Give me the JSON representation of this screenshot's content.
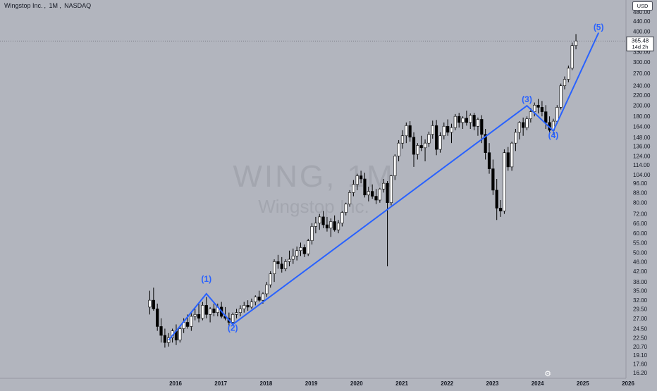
{
  "header": {
    "symbol_name": "Wingstop Inc.",
    "interval": "1M",
    "exchange": "NASDAQ"
  },
  "currency": "USD",
  "watermark": {
    "ticker_interval": "WING, 1M",
    "company": "Wingstop Inc."
  },
  "colors": {
    "background": "#b2b5be",
    "up_candle": "#ffffff",
    "down_candle": "#000000",
    "wave_line": "#2962ff",
    "wave_label": "#2962ff",
    "price_line": "#5d606b"
  },
  "icons": {
    "settings": "settings-icon"
  },
  "chart_data": {
    "type": "candlestick",
    "price_scale": "log",
    "y_ticks": [
      16.2,
      17.6,
      19.1,
      20.7,
      22.5,
      24.5,
      27.0,
      29.5,
      32.0,
      35.0,
      38.0,
      42.0,
      46.0,
      50.0,
      55.0,
      60.0,
      66.0,
      72.0,
      80.0,
      88.0,
      96.0,
      104.0,
      114.0,
      124.0,
      136.0,
      148.0,
      164.0,
      180.0,
      200.0,
      220.0,
      240.0,
      270.0,
      300.0,
      330.0,
      400.0,
      440.0,
      480.0
    ],
    "x_ticks": [
      "2016",
      "2017",
      "2018",
      "2019",
      "2020",
      "2021",
      "2022",
      "2023",
      "2024",
      "2025",
      "2026"
    ],
    "current_price": {
      "value": "365.48",
      "countdown": "14d 2h"
    },
    "candles_ohlc": [
      [
        30.0,
        35.0,
        28.0,
        32.0
      ],
      [
        32.0,
        36.0,
        29.0,
        29.5
      ],
      [
        29.5,
        31.0,
        24.0,
        25.0
      ],
      [
        25.0,
        27.0,
        21.5,
        23.0
      ],
      [
        23.0,
        24.5,
        20.5,
        21.5
      ],
      [
        21.5,
        23.5,
        20.7,
        22.5
      ],
      [
        22.5,
        24.5,
        21.5,
        24.0
      ],
      [
        24.0,
        25.5,
        21.0,
        22.0
      ],
      [
        22.0,
        25.0,
        21.5,
        24.5
      ],
      [
        24.5,
        27.0,
        23.5,
        26.0
      ],
      [
        26.0,
        28.0,
        24.5,
        25.0
      ],
      [
        25.0,
        28.5,
        24.0,
        27.5
      ],
      [
        27.5,
        29.5,
        26.5,
        28.0
      ],
      [
        28.0,
        31.0,
        26.0,
        27.0
      ],
      [
        27.0,
        31.5,
        26.5,
        30.5
      ],
      [
        30.5,
        33.0,
        27.0,
        28.0
      ],
      [
        28.0,
        30.0,
        26.0,
        29.5
      ],
      [
        29.5,
        31.0,
        27.5,
        28.5
      ],
      [
        28.5,
        31.0,
        27.5,
        30.0
      ],
      [
        30.0,
        31.5,
        27.0,
        27.5
      ],
      [
        27.5,
        30.0,
        26.5,
        27.0
      ],
      [
        27.0,
        28.5,
        25.0,
        26.0
      ],
      [
        26.0,
        28.5,
        25.5,
        28.0
      ],
      [
        28.0,
        29.5,
        27.0,
        28.5
      ],
      [
        28.5,
        30.5,
        27.5,
        29.5
      ],
      [
        29.5,
        31.5,
        28.5,
        30.5
      ],
      [
        30.5,
        32.0,
        29.0,
        30.0
      ],
      [
        30.0,
        32.5,
        29.5,
        31.5
      ],
      [
        31.5,
        33.5,
        30.5,
        33.0
      ],
      [
        33.0,
        35.0,
        31.5,
        32.0
      ],
      [
        32.0,
        34.5,
        31.0,
        34.0
      ],
      [
        34.0,
        38.0,
        33.0,
        37.0
      ],
      [
        37.0,
        42.0,
        36.0,
        41.0
      ],
      [
        41.0,
        47.0,
        38.0,
        46.0
      ],
      [
        46.0,
        49.0,
        43.0,
        45.0
      ],
      [
        45.0,
        48.0,
        41.5,
        43.0
      ],
      [
        43.0,
        47.0,
        42.0,
        46.0
      ],
      [
        46.0,
        51.0,
        44.0,
        47.0
      ],
      [
        47.0,
        52.0,
        45.0,
        48.5
      ],
      [
        48.5,
        53.0,
        46.5,
        51.0
      ],
      [
        51.0,
        55.0,
        48.5,
        52.5
      ],
      [
        52.5,
        54.0,
        48.0,
        49.5
      ],
      [
        49.5,
        57.0,
        48.5,
        56.0
      ],
      [
        56.0,
        66.0,
        54.0,
        64.0
      ],
      [
        64.0,
        70.0,
        60.0,
        66.0
      ],
      [
        66.0,
        72.0,
        62.0,
        70.0
      ],
      [
        70.0,
        74.0,
        63.0,
        65.0
      ],
      [
        65.0,
        70.0,
        61.0,
        63.0
      ],
      [
        63.0,
        69.0,
        58.0,
        67.0
      ],
      [
        67.0,
        71.0,
        61.0,
        62.0
      ],
      [
        62.0,
        68.0,
        60.0,
        66.0
      ],
      [
        66.0,
        74.0,
        64.0,
        73.0
      ],
      [
        73.0,
        80.0,
        71.0,
        79.0
      ],
      [
        79.0,
        90.0,
        77.0,
        88.0
      ],
      [
        88.0,
        99.0,
        85.0,
        95.0
      ],
      [
        95.0,
        105.0,
        90.0,
        103.0
      ],
      [
        103.0,
        108.0,
        96.0,
        100.0
      ],
      [
        100.0,
        106.0,
        84.0,
        86.0
      ],
      [
        86.0,
        93.0,
        81.0,
        89.0
      ],
      [
        89.0,
        95.0,
        83.0,
        85.0
      ],
      [
        85.0,
        91.0,
        79.0,
        82.0
      ],
      [
        82.0,
        92.0,
        80.0,
        91.0
      ],
      [
        91.0,
        100.0,
        88.0,
        96.0
      ],
      [
        96.0,
        98.0,
        44.0,
        80.0
      ],
      [
        80.0,
        104.0,
        78.0,
        103.0
      ],
      [
        103.0,
        126.0,
        99.0,
        124.0
      ],
      [
        124.0,
        144.0,
        118.0,
        140.0
      ],
      [
        140.0,
        158.0,
        133.0,
        150.0
      ],
      [
        150.0,
        170.0,
        140.0,
        165.0
      ],
      [
        165.0,
        172.0,
        142.0,
        148.0
      ],
      [
        148.0,
        155.0,
        112.0,
        126.0
      ],
      [
        126.0,
        140.0,
        120.0,
        137.0
      ],
      [
        137.0,
        150.0,
        130.0,
        134.0
      ],
      [
        134.0,
        145.0,
        118.0,
        140.0
      ],
      [
        140.0,
        156.0,
        135.0,
        152.0
      ],
      [
        152.0,
        173.0,
        146.0,
        165.0
      ],
      [
        165.0,
        174.0,
        125.0,
        132.0
      ],
      [
        132.0,
        155.0,
        128.0,
        150.0
      ],
      [
        150.0,
        170.0,
        145.0,
        164.0
      ],
      [
        164.0,
        175.0,
        150.0,
        155.0
      ],
      [
        155.0,
        168.0,
        140.0,
        162.0
      ],
      [
        162.0,
        184.0,
        158.0,
        180.0
      ],
      [
        180.0,
        186.0,
        162.0,
        170.0
      ],
      [
        170.0,
        180.0,
        160.0,
        177.0
      ],
      [
        177.0,
        190.0,
        165.0,
        170.0
      ],
      [
        170.0,
        185.0,
        160.0,
        182.0
      ],
      [
        182.0,
        186.0,
        158.0,
        164.0
      ],
      [
        164.0,
        178.0,
        150.0,
        175.0
      ],
      [
        175.0,
        182.0,
        140.0,
        152.0
      ],
      [
        152.0,
        160.0,
        120.0,
        128.0
      ],
      [
        128.0,
        140.0,
        105.0,
        110.0
      ],
      [
        110.0,
        120.0,
        86.0,
        90.0
      ],
      [
        90.0,
        100.0,
        68.0,
        76.0
      ],
      [
        76.0,
        82.0,
        70.0,
        74.0
      ],
      [
        74.0,
        132.0,
        72.0,
        128.0
      ],
      [
        128.0,
        135.0,
        108.0,
        112.0
      ],
      [
        112.0,
        142.0,
        108.0,
        140.0
      ],
      [
        140.0,
        160.0,
        130.0,
        155.0
      ],
      [
        155.0,
        172.0,
        145.0,
        170.0
      ],
      [
        170.0,
        178.0,
        150.0,
        162.0
      ],
      [
        162.0,
        180.0,
        158.0,
        176.0
      ],
      [
        176.0,
        195.0,
        170.0,
        188.0
      ],
      [
        188.0,
        205.0,
        180.0,
        200.0
      ],
      [
        200.0,
        212.0,
        185.0,
        196.0
      ],
      [
        196.0,
        208.0,
        180.0,
        188.0
      ],
      [
        188.0,
        200.0,
        160.0,
        170.0
      ],
      [
        170.0,
        180.0,
        155.0,
        158.0
      ],
      [
        158.0,
        176.0,
        152.0,
        172.0
      ],
      [
        172.0,
        200.0,
        168.0,
        196.0
      ],
      [
        196.0,
        245.0,
        192.0,
        240.0
      ],
      [
        240.0,
        262.0,
        232.0,
        255.0
      ],
      [
        255.0,
        290.0,
        248.0,
        283.0
      ],
      [
        283.0,
        360.0,
        278.0,
        350.0
      ],
      [
        350.0,
        390.0,
        338.0,
        365.48
      ]
    ],
    "wave_path": [
      {
        "candle": 5,
        "price": 22.0
      },
      {
        "candle": 15,
        "price": 34.0
      },
      {
        "candle": 22,
        "price": 25.5
      },
      {
        "candle": 100,
        "price": 199.0
      },
      {
        "candle": 107,
        "price": 157.0
      },
      {
        "candle": 119,
        "price": 395.0
      }
    ],
    "wave_labels": [
      {
        "text": "(1)",
        "candle": 15,
        "price": 38.0
      },
      {
        "text": "(2)",
        "candle": 22,
        "price": 24.0
      },
      {
        "text": "(3)",
        "candle": 100,
        "price": 206.0
      },
      {
        "text": "(4)",
        "candle": 107,
        "price": 147.0
      },
      {
        "text": "(5)",
        "candle": 119,
        "price": 405.0
      }
    ]
  }
}
